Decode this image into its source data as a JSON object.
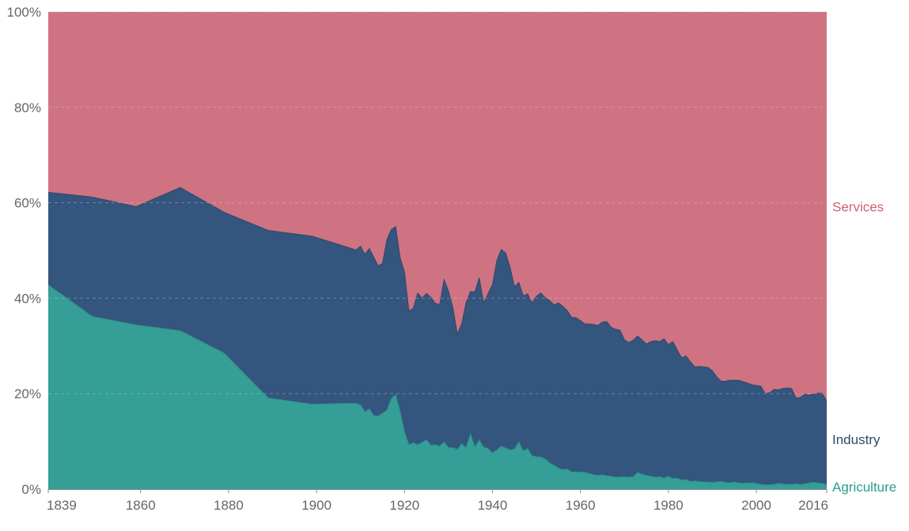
{
  "chart_data": {
    "type": "area",
    "stacked": true,
    "percent": true,
    "title": "",
    "xlabel": "",
    "ylabel": "",
    "ylim": [
      0,
      100
    ],
    "xlim": [
      1839,
      2016
    ],
    "grid": true,
    "legend": "right, inline at series ends",
    "x_ticks": [
      1839,
      1860,
      1880,
      1900,
      1920,
      1940,
      1960,
      1980,
      2000,
      2016
    ],
    "y_ticks": [
      0,
      20,
      40,
      60,
      80,
      100
    ],
    "y_tick_labels": [
      "0%",
      "20%",
      "40%",
      "60%",
      "80%",
      "100%"
    ],
    "x_tick_labels": [
      "1839",
      "1860",
      "1880",
      "1900",
      "1920",
      "1940",
      "1960",
      "1980",
      "2000",
      "2016"
    ],
    "series": [
      {
        "name": "Agriculture",
        "color": "#359e96",
        "label_color": "#2a9d8f",
        "x": [
          1839,
          1849,
          1859,
          1869,
          1879,
          1889,
          1899,
          1909,
          1910,
          1911,
          1912,
          1913,
          1914,
          1915,
          1916,
          1917,
          1918,
          1919,
          1920,
          1921,
          1922,
          1923,
          1924,
          1925,
          1926,
          1927,
          1928,
          1929,
          1930,
          1931,
          1932,
          1933,
          1934,
          1935,
          1936,
          1937,
          1938,
          1939,
          1940,
          1941,
          1942,
          1943,
          1944,
          1945,
          1946,
          1947,
          1948,
          1949,
          1950,
          1951,
          1952,
          1953,
          1954,
          1955,
          1956,
          1957,
          1958,
          1959,
          1960,
          1961,
          1962,
          1963,
          1964,
          1965,
          1966,
          1967,
          1968,
          1969,
          1970,
          1971,
          1972,
          1973,
          1974,
          1975,
          1976,
          1977,
          1978,
          1979,
          1980,
          1981,
          1982,
          1983,
          1984,
          1985,
          1986,
          1987,
          1988,
          1989,
          1990,
          1991,
          1992,
          1993,
          1994,
          1995,
          1996,
          1997,
          1998,
          1999,
          2000,
          2001,
          2002,
          2003,
          2004,
          2005,
          2006,
          2007,
          2008,
          2009,
          2010,
          2011,
          2012,
          2013,
          2014,
          2015,
          2016
        ],
        "values": [
          42.8,
          36.2,
          34.4,
          33.2,
          28.5,
          19.1,
          17.8,
          18.0,
          17.6,
          16.2,
          16.8,
          15.4,
          15.3,
          15.9,
          16.5,
          19.0,
          19.8,
          16.3,
          12.0,
          9.3,
          9.7,
          9.3,
          9.8,
          10.3,
          9.2,
          9.3,
          9.0,
          9.9,
          8.7,
          8.7,
          8.3,
          9.5,
          8.7,
          11.6,
          8.8,
          10.3,
          8.8,
          8.5,
          7.6,
          8.2,
          9.0,
          8.6,
          8.2,
          8.4,
          9.9,
          8.0,
          8.5,
          7.0,
          6.8,
          6.7,
          6.3,
          5.5,
          5.0,
          4.4,
          4.1,
          4.2,
          3.6,
          3.6,
          3.6,
          3.5,
          3.3,
          3.0,
          2.9,
          3.0,
          2.8,
          2.7,
          2.5,
          2.5,
          2.6,
          2.5,
          2.6,
          3.5,
          3.1,
          2.9,
          2.7,
          2.5,
          2.6,
          2.3,
          2.7,
          2.2,
          2.3,
          1.9,
          2.0,
          1.6,
          1.7,
          1.6,
          1.5,
          1.5,
          1.4,
          1.5,
          1.6,
          1.4,
          1.3,
          1.5,
          1.3,
          1.2,
          1.3,
          1.3,
          1.2,
          1.0,
          0.9,
          0.9,
          1.0,
          1.2,
          1.1,
          1.0,
          1.0,
          1.1,
          1.0,
          1.1,
          1.3,
          1.4,
          1.3,
          1.2,
          0.9
        ]
      },
      {
        "name": "Industry",
        "color": "#34557d",
        "label_color": "#2c4a6e",
        "x": [
          1839,
          1849,
          1859,
          1869,
          1879,
          1889,
          1899,
          1909,
          1910,
          1911,
          1912,
          1913,
          1914,
          1915,
          1916,
          1917,
          1918,
          1919,
          1920,
          1921,
          1922,
          1923,
          1924,
          1925,
          1926,
          1927,
          1928,
          1929,
          1930,
          1931,
          1932,
          1933,
          1934,
          1935,
          1936,
          1937,
          1938,
          1939,
          1940,
          1941,
          1942,
          1943,
          1944,
          1945,
          1946,
          1947,
          1948,
          1949,
          1950,
          1951,
          1952,
          1953,
          1954,
          1955,
          1956,
          1957,
          1958,
          1959,
          1960,
          1961,
          1962,
          1963,
          1964,
          1965,
          1966,
          1967,
          1968,
          1969,
          1970,
          1971,
          1972,
          1973,
          1974,
          1975,
          1976,
          1977,
          1978,
          1979,
          1980,
          1981,
          1982,
          1983,
          1984,
          1985,
          1986,
          1987,
          1988,
          1989,
          1990,
          1991,
          1992,
          1993,
          1994,
          1995,
          1996,
          1997,
          1998,
          1999,
          2000,
          2001,
          2002,
          2003,
          2004,
          2005,
          2006,
          2007,
          2008,
          2009,
          2010,
          2011,
          2012,
          2013,
          2014,
          2015,
          2016
        ],
        "values": [
          19.4,
          25.0,
          24.8,
          30.0,
          29.5,
          35.1,
          35.2,
          32.1,
          33.3,
          33.0,
          33.6,
          33.2,
          31.5,
          31.4,
          35.8,
          35.4,
          35.2,
          32.2,
          33.5,
          28.0,
          28.2,
          31.8,
          30.2,
          30.7,
          31.0,
          29.6,
          29.7,
          34.0,
          32.8,
          29.3,
          24.2,
          25.1,
          30.4,
          29.8,
          32.5,
          34.0,
          30.2,
          32.5,
          35.2,
          39.7,
          41.2,
          40.9,
          38.3,
          34.0,
          33.4,
          32.5,
          32.4,
          32.0,
          33.6,
          34.4,
          33.8,
          34.0,
          33.6,
          34.6,
          34.2,
          33.2,
          32.4,
          32.3,
          31.7,
          31.1,
          31.3,
          31.5,
          31.4,
          32.0,
          32.3,
          31.2,
          31.0,
          30.8,
          28.7,
          28.2,
          28.6,
          28.6,
          28.2,
          27.5,
          28.2,
          28.6,
          28.3,
          29.2,
          27.6,
          28.7,
          26.9,
          25.6,
          25.9,
          25.1,
          23.9,
          24.1,
          24.1,
          24.0,
          23.4,
          22.0,
          21.0,
          21.2,
          21.5,
          21.3,
          21.5,
          21.3,
          20.9,
          20.6,
          20.5,
          20.6,
          19.1,
          19.3,
          19.9,
          19.6,
          20.0,
          20.2,
          20.1,
          18.0,
          18.2,
          18.8,
          18.4,
          18.5,
          18.8,
          18.9,
          17.5
        ]
      },
      {
        "name": "Services",
        "color": "#cf7383",
        "label_color": "#cf6073",
        "fill_to_top": true
      }
    ]
  }
}
